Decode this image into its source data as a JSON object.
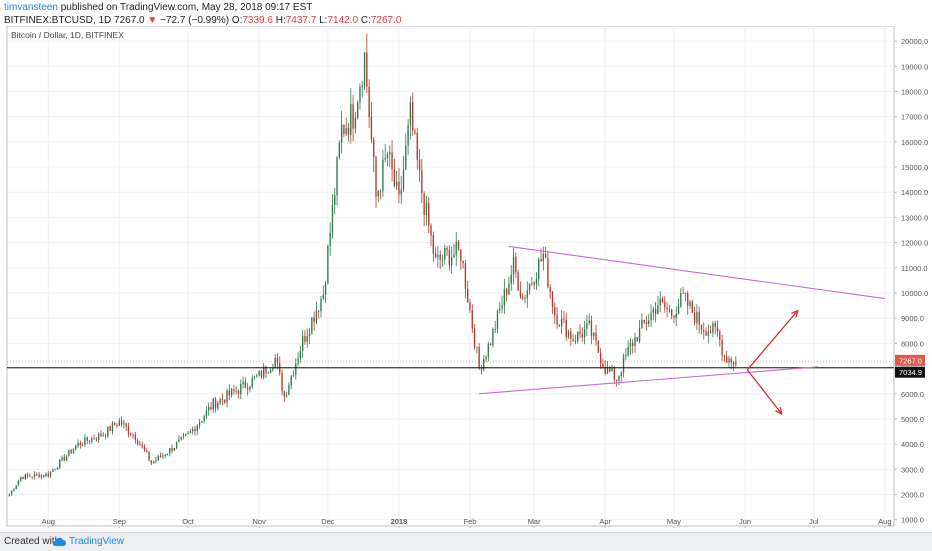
{
  "header": {
    "author": "timvansteen",
    "published_text": " published on TradingView.com, May 28, 2018 09:17 EST",
    "symbol": "BITFINEX:BTCUSD, 1D",
    "last_price": "7267.0",
    "change": "−72.7 (−0.99%)",
    "open_label": "O:",
    "open": "7339.6",
    "high_label": "H:",
    "high": "7437.7",
    "low_label": "L:",
    "low": "7142.0",
    "close_label": "C:",
    "close": "7267.0"
  },
  "footer": {
    "created_with": "Created with",
    "brand": "TradingView"
  },
  "colors": {
    "up": "#2d7a4e",
    "down": "#b53a2a",
    "trendline": "#c36bd6",
    "arrows": "#e02020",
    "last_price_badge": "#e0594f",
    "horizontal_line_badge": "#111111"
  },
  "chart_data": {
    "type": "candlestick",
    "title": "Bitcoin / Dollar, 1D, BITFINEX",
    "x_tick_labels": [
      "Aug",
      "Sep",
      "Oct",
      "Nov",
      "Dec",
      "2018",
      "Feb",
      "Mar",
      "Apr",
      "May",
      "Jun",
      "Jul",
      "Aug"
    ],
    "x_tick_dates": [
      "2017-08-01",
      "2017-09-01",
      "2017-10-01",
      "2017-11-01",
      "2017-12-01",
      "2018-01-01",
      "2018-02-01",
      "2018-03-01",
      "2018-04-01",
      "2018-05-01",
      "2018-06-01",
      "2018-07-01",
      "2018-08-01"
    ],
    "x_range": [
      "2017-07-14",
      "2018-08-05"
    ],
    "ylim": [
      750,
      20600
    ],
    "y_ticks": [
      1000,
      2000,
      3000,
      4000,
      5000,
      6000,
      7000,
      8000,
      9000,
      10000,
      11000,
      12000,
      13000,
      14000,
      15000,
      16000,
      17000,
      18000,
      19000,
      20000
    ],
    "y_axis_side": "right",
    "grid": true,
    "closes": [
      {
        "date": "2017-07-15",
        "close": 2000
      },
      {
        "date": "2017-07-20",
        "close": 2700
      },
      {
        "date": "2017-08-01",
        "close": 2800
      },
      {
        "date": "2017-08-14",
        "close": 4000
      },
      {
        "date": "2017-08-25",
        "close": 4400
      },
      {
        "date": "2017-09-01",
        "close": 4900
      },
      {
        "date": "2017-09-08",
        "close": 4300
      },
      {
        "date": "2017-09-15",
        "close": 3250
      },
      {
        "date": "2017-09-22",
        "close": 3700
      },
      {
        "date": "2017-10-01",
        "close": 4350
      },
      {
        "date": "2017-10-12",
        "close": 5600
      },
      {
        "date": "2017-10-20",
        "close": 6000
      },
      {
        "date": "2017-11-01",
        "close": 6700
      },
      {
        "date": "2017-11-08",
        "close": 7400
      },
      {
        "date": "2017-11-12",
        "close": 5900
      },
      {
        "date": "2017-11-20",
        "close": 8100
      },
      {
        "date": "2017-11-29",
        "close": 10000
      },
      {
        "date": "2017-12-07",
        "close": 16500
      },
      {
        "date": "2017-12-12",
        "close": 17100
      },
      {
        "date": "2017-12-17",
        "close": 19400
      },
      {
        "date": "2017-12-22",
        "close": 13800
      },
      {
        "date": "2017-12-27",
        "close": 15500
      },
      {
        "date": "2018-01-01",
        "close": 13500
      },
      {
        "date": "2018-01-06",
        "close": 17000
      },
      {
        "date": "2018-01-10",
        "close": 14500
      },
      {
        "date": "2018-01-17",
        "close": 11200
      },
      {
        "date": "2018-01-22",
        "close": 11500
      },
      {
        "date": "2018-01-28",
        "close": 11600
      },
      {
        "date": "2018-02-05",
        "close": 7000
      },
      {
        "date": "2018-02-10",
        "close": 8100
      },
      {
        "date": "2018-02-20",
        "close": 11100
      },
      {
        "date": "2018-02-24",
        "close": 9800
      },
      {
        "date": "2018-03-05",
        "close": 11500
      },
      {
        "date": "2018-03-10",
        "close": 9200
      },
      {
        "date": "2018-03-18",
        "close": 8200
      },
      {
        "date": "2018-03-25",
        "close": 8600
      },
      {
        "date": "2018-04-01",
        "close": 7000
      },
      {
        "date": "2018-04-06",
        "close": 6600
      },
      {
        "date": "2018-04-12",
        "close": 7900
      },
      {
        "date": "2018-04-24",
        "close": 9600
      },
      {
        "date": "2018-04-30",
        "close": 9200
      },
      {
        "date": "2018-05-05",
        "close": 9800
      },
      {
        "date": "2018-05-13",
        "close": 8700
      },
      {
        "date": "2018-05-20",
        "close": 8400
      },
      {
        "date": "2018-05-23",
        "close": 7500
      },
      {
        "date": "2018-05-28",
        "close": 7267
      }
    ],
    "annotations": {
      "upper_trendline": {
        "from": {
          "date": "2018-02-18",
          "price": 11850
        },
        "to": {
          "date": "2018-08-01",
          "price": 9780
        }
      },
      "lower_trendline": {
        "from": {
          "date": "2018-02-05",
          "price": 6000
        },
        "to": {
          "date": "2018-07-03",
          "price": 7070
        }
      },
      "horizontal_line_price": 7034.9,
      "last_price": 7267.0,
      "arrow_origin": {
        "date": "2018-06-02",
        "price": 6950
      },
      "arrow_up_target": {
        "date": "2018-06-24",
        "price": 9300
      },
      "arrow_down_target": {
        "date": "2018-06-17",
        "price": 5200
      }
    },
    "price_badges": [
      "7267.0",
      "7034.9"
    ]
  }
}
